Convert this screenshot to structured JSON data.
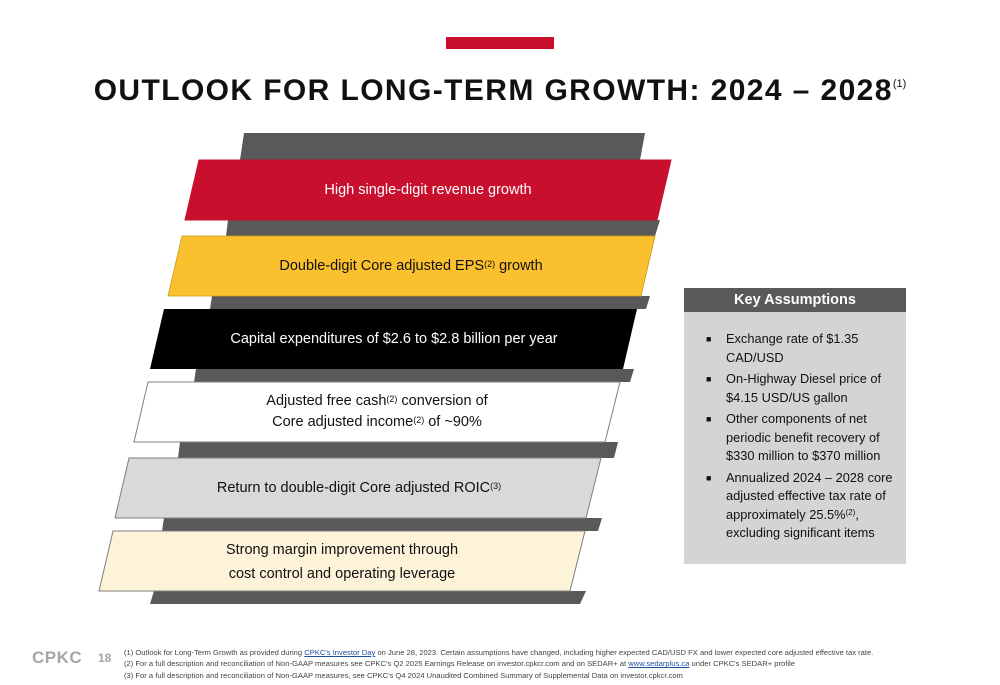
{
  "header": {
    "title": "OUTLOOK FOR LONG-TERM GROWTH: 2024 – 2028",
    "title_sup": "(1)",
    "accent_color": "#c8102e"
  },
  "bands": [
    {
      "id": "revenue",
      "color": "#c8102e",
      "text_color": "#ffffff",
      "parts": [
        {
          "text": "High single-digit revenue growth"
        }
      ]
    },
    {
      "id": "eps",
      "color": "#fbc02d",
      "text_color": "#111111",
      "parts": [
        {
          "text": "Double-digit Core adjusted EPS"
        },
        {
          "sup": "(2)"
        },
        {
          "text": " growth"
        }
      ]
    },
    {
      "id": "capex",
      "color": "#000000",
      "text_color": "#ffffff",
      "parts": [
        {
          "text": "Capital expenditures of $2.6 to $2.8 billion per year"
        }
      ]
    },
    {
      "id": "fcf",
      "color": "#ffffff",
      "text_color": "#111111",
      "line1": [
        {
          "text": "Adjusted free cash"
        },
        {
          "sup": "(2)"
        },
        {
          "text": " conversion of"
        }
      ],
      "line2": [
        {
          "text": "Core adjusted income"
        },
        {
          "sup": "(2)"
        },
        {
          "text": " of ~90%"
        }
      ]
    },
    {
      "id": "roic",
      "color": "#d9d9d9",
      "text_color": "#111111",
      "parts": [
        {
          "text": "Return to double-digit Core adjusted ROIC"
        },
        {
          "sup": "(3)"
        }
      ]
    },
    {
      "id": "margin",
      "color": "#fcf3d9",
      "text_color": "#111111",
      "line1": [
        {
          "text": "Strong margin improvement through"
        }
      ],
      "line2": [
        {
          "text": "cost control and operating leverage"
        }
      ]
    }
  ],
  "key_assumptions": {
    "header": "Key Assumptions",
    "items": [
      {
        "parts": [
          {
            "text": "Exchange rate of $1.35 CAD/USD"
          }
        ]
      },
      {
        "parts": [
          {
            "text": "On-Highway Diesel price of $4.15 USD/US gallon"
          }
        ]
      },
      {
        "parts": [
          {
            "text": "Other components of net periodic benefit recovery of $330 million to $370 million"
          }
        ]
      },
      {
        "parts": [
          {
            "text": "Annualized 2024 – 2028 core adjusted effective tax rate of approximately 25.5%"
          },
          {
            "sup": "(2)"
          },
          {
            "text": ", excluding significant items"
          }
        ]
      }
    ]
  },
  "footer": {
    "logo": "CPKC",
    "page_number": "18",
    "footnotes": [
      [
        {
          "text": "(1) Outlook for Long-Term Growth as provided during "
        },
        {
          "link": "CPKC's Investor Day"
        },
        {
          "text": " on June 28, 2023. Certain assumptions have changed, including higher expected CAD/USD FX and lower expected core adjusted effective tax rate."
        }
      ],
      [
        {
          "text": "(2) For a full description and reconciliation of Non-GAAP measures see CPKC's Q2 2025 Earnings Release on investor.cpkcr.com and on SEDAR+ at "
        },
        {
          "link": "www.sedarplus.ca"
        },
        {
          "text": " under CPKC's SEDAR+ profile"
        }
      ],
      [
        {
          "text": "(3) For a full description and reconciliation of Non-GAAP measures, see CPKC's Q4 2024 Unaudited Combined Summary of Supplemental Data on investor.cpkcr.com"
        }
      ]
    ]
  }
}
